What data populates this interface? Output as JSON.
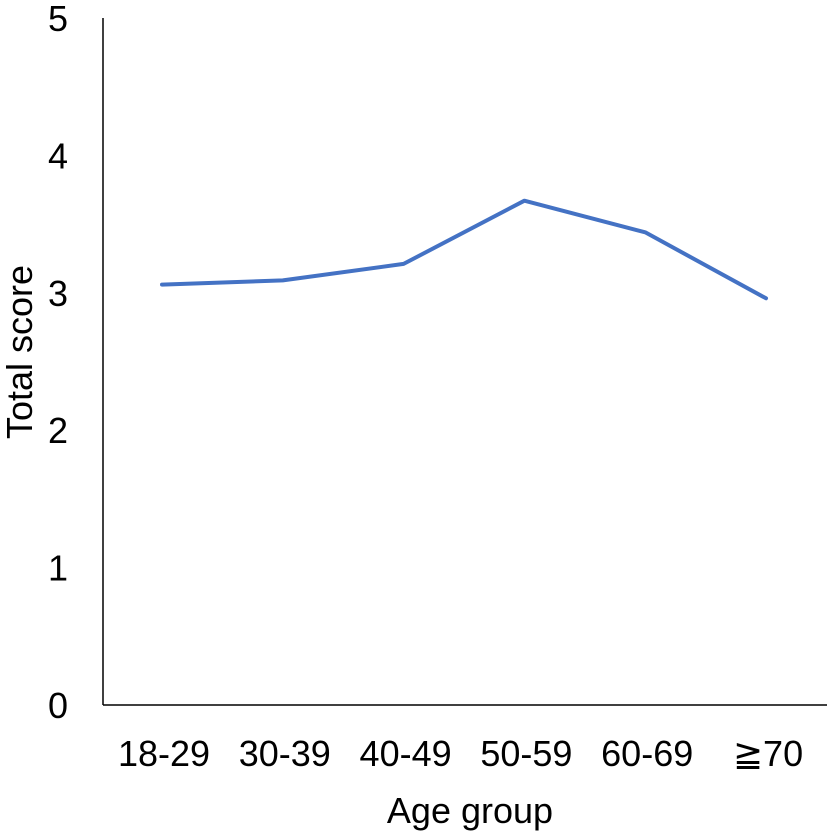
{
  "chart_data": {
    "type": "line",
    "title": "",
    "xlabel": "Age group",
    "ylabel": "Total score",
    "categories": [
      "18-29",
      "30-39",
      "40-49",
      "50-59",
      "60-69",
      "≧70"
    ],
    "series": [
      {
        "values": [
          3.06,
          3.09,
          3.21,
          3.67,
          3.44,
          2.96
        ],
        "color": "#4472C4"
      }
    ],
    "ylim": [
      0,
      5
    ],
    "yticks": [
      "0",
      "1",
      "2",
      "3",
      "4",
      "5"
    ],
    "grid": false,
    "legend": "none"
  }
}
